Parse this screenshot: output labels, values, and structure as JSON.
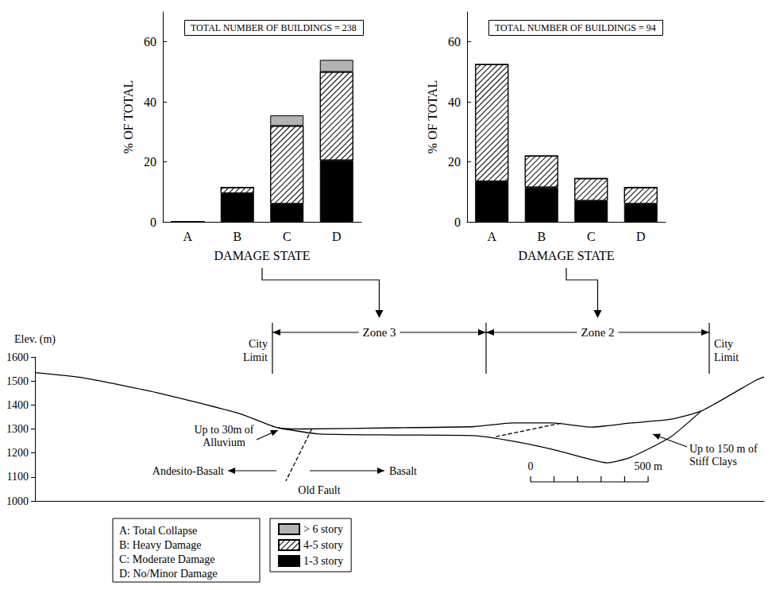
{
  "chart_data": [
    {
      "type": "bar",
      "stacked": true,
      "title": "TOTAL NUMBER OF BUILDINGS = 238",
      "x_label": "DAMAGE STATE",
      "y_label": "% OF TOTAL",
      "categories": [
        "A",
        "B",
        "C",
        "D"
      ],
      "series": [
        {
          "name": "1-3 story",
          "color": "#000000",
          "values": [
            0,
            9.5,
            6,
            20.5
          ]
        },
        {
          "name": "4-5 story",
          "color": "#ffffff",
          "values": [
            0,
            2,
            26,
            29.5
          ]
        },
        {
          "name": "> 6 story",
          "color": "#b3b3b3",
          "values": [
            0,
            0,
            3.5,
            4
          ]
        }
      ],
      "ylim": [
        0,
        70
      ],
      "yticks": [
        0,
        20,
        40,
        60
      ],
      "legend": "lower left"
    },
    {
      "type": "bar",
      "stacked": true,
      "title": "TOTAL NUMBER OF BUILDINGS = 94",
      "x_label": "DAMAGE STATE",
      "y_label": "% OF TOTAL",
      "categories": [
        "A",
        "B",
        "C",
        "D"
      ],
      "series": [
        {
          "name": "1-3 story",
          "color": "#000000",
          "values": [
            13.5,
            11.5,
            7,
            6
          ]
        },
        {
          "name": "4-5 story",
          "color": "#ffffff",
          "values": [
            39,
            10.5,
            7.5,
            5.5
          ]
        },
        {
          "name": "> 6 story",
          "color": "#b3b3b3",
          "values": [
            0,
            0,
            0,
            0
          ]
        }
      ],
      "ylim": [
        0,
        70
      ],
      "yticks": [
        0,
        20,
        40,
        60
      ],
      "legend": "lower left"
    },
    {
      "type": "line",
      "y_label": "Elev. (m)",
      "xlim": [
        0,
        3100
      ],
      "ylim": [
        1000,
        1600
      ],
      "yticks": [
        1000,
        1100,
        1200,
        1300,
        1400,
        1500,
        1600
      ],
      "tick_labels": "y",
      "series": [
        {
          "color": "#000000",
          "line_style": "solid",
          "x": [
            0,
            200,
            533,
            867,
            1033,
            1133,
            1533,
            1867,
            2033,
            2200,
            2367,
            2533,
            2700,
            2833,
            2967,
            3067,
            3100
          ],
          "values": [
            1535,
            1514,
            1448,
            1365,
            1305,
            1300,
            1305,
            1310,
            1325,
            1325,
            1308,
            1325,
            1340,
            1375,
            1448,
            1504,
            1517
          ]
        },
        {
          "color": "#000000",
          "line_style": "solid",
          "x": [
            1033,
            1200,
            1533,
            1867,
            2033,
            2200,
            2367,
            2433,
            2533,
            2700,
            2833
          ],
          "values": [
            1305,
            1280,
            1275,
            1272,
            1249,
            1215,
            1172,
            1159,
            1182,
            1265,
            1375
          ]
        },
        {
          "color": "#000000",
          "line_style": "dashed",
          "x": [
            1960,
            2240
          ],
          "values": [
            1268,
            1325
          ]
        },
        {
          "color": "#000000",
          "line_style": "dashed",
          "x": [
            1177,
            1067
          ],
          "values": [
            1300,
            1083
          ]
        }
      ],
      "zones": [
        "Zone 3",
        "Zone 2"
      ],
      "city_limits": [
        "City\nLimit",
        "City\nLimit"
      ],
      "annotations": [
        "Up to 30m of\nAlluvium",
        "Andesito-Basalt",
        "Old Fault",
        "Basalt",
        "Up to 150 m of\nStiff Clays"
      ],
      "scale_bar": {
        "ticks": [
          0,
          100,
          200,
          300,
          400,
          500
        ],
        "labels": [
          0,
          {
            "value": 500,
            "label": "500 m"
          }
        ]
      }
    }
  ],
  "key": [
    "A: Total Collapse",
    "B: Heavy Damage",
    "C: Moderate Damage",
    "D: No/Minor Damage"
  ]
}
